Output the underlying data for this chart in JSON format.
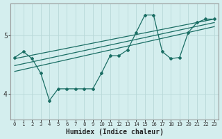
{
  "xlabel": "Humidex (Indice chaleur)",
  "bg_color": "#d4eeee",
  "line_color": "#1a6e64",
  "grid_color": "#b8d8d8",
  "x_ticks": [
    0,
    1,
    2,
    3,
    4,
    5,
    6,
    7,
    8,
    9,
    10,
    11,
    12,
    13,
    14,
    15,
    16,
    17,
    18,
    19,
    20,
    21,
    22,
    23
  ],
  "y_ticks": [
    4,
    5
  ],
  "ylim": [
    3.55,
    5.55
  ],
  "xlim": [
    -0.5,
    23.5
  ],
  "jagged_series": [
    4.62,
    4.72,
    4.6,
    4.35,
    3.88,
    4.08,
    4.08,
    4.08,
    4.08,
    4.08,
    4.35,
    4.65,
    4.65,
    4.75,
    5.05,
    5.35,
    5.35,
    4.72,
    4.6,
    4.62,
    5.05,
    5.22,
    5.28,
    5.28
  ],
  "straight_lines": [
    {
      "x0": 0,
      "y0": 4.6,
      "x1": 23,
      "y1": 5.28
    },
    {
      "x0": 0,
      "y0": 4.48,
      "x1": 23,
      "y1": 5.22
    },
    {
      "x0": 0,
      "y0": 4.38,
      "x1": 23,
      "y1": 5.15
    }
  ]
}
